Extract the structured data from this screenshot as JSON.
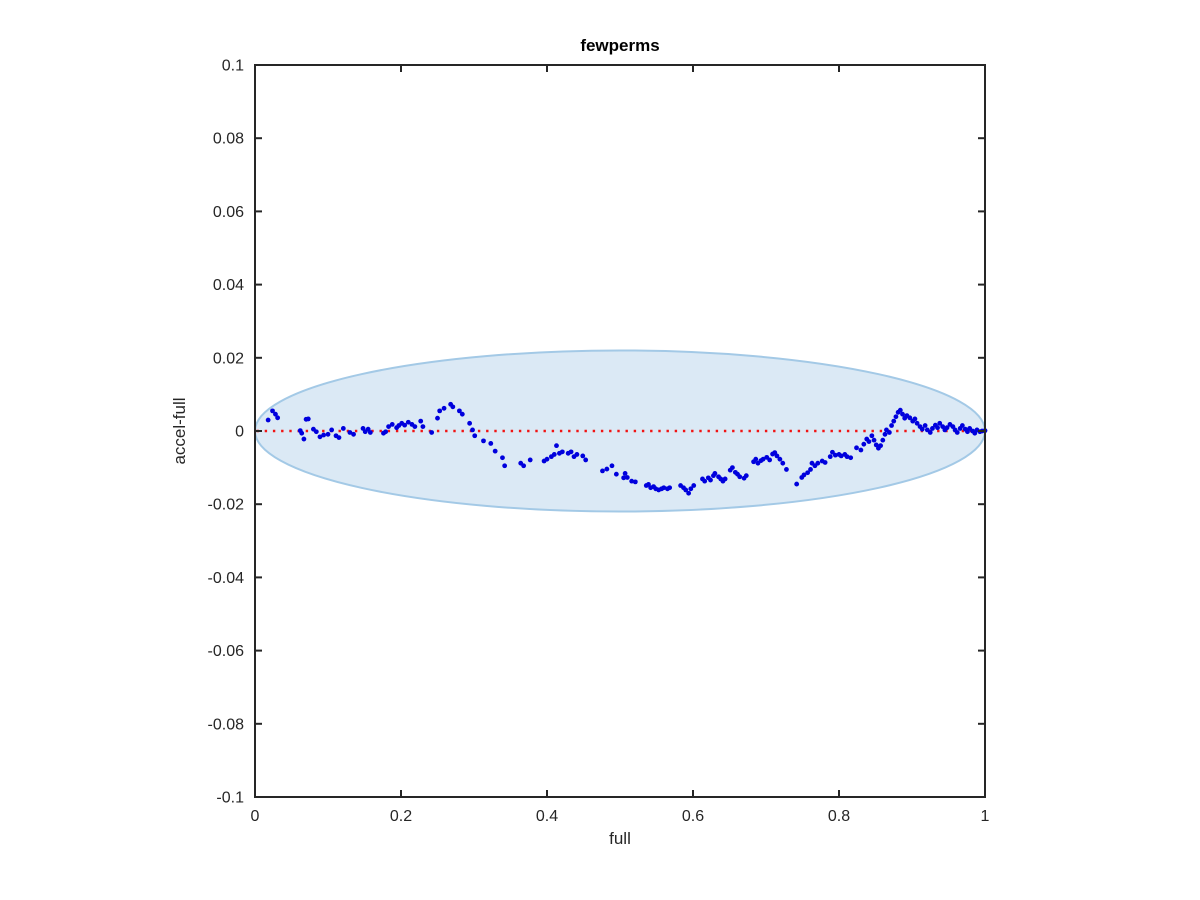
{
  "figure": {
    "background": "#ffffff"
  },
  "chart_data": {
    "type": "scatter",
    "title": "fewperms",
    "xlabel": "full",
    "ylabel": "accel-full",
    "xlim": [
      0,
      1
    ],
    "ylim": [
      -0.1,
      0.1
    ],
    "grid": false,
    "legend": "none",
    "axis_color": "#262626",
    "xticks": {
      "values": [
        0,
        0.2,
        0.4,
        0.6,
        0.8,
        1
      ],
      "labels": [
        "0",
        "0.2",
        "0.4",
        "0.6",
        "0.8",
        "1"
      ]
    },
    "yticks": {
      "values": [
        0.1,
        0.08,
        0.06,
        0.04,
        0.02,
        0,
        -0.02,
        -0.04,
        -0.06,
        -0.08,
        -0.1
      ],
      "labels": [
        "0.1",
        "0.08",
        "0.06",
        "0.04",
        "0.02",
        "0",
        "-0.02",
        "-0.04",
        "-0.06",
        "-0.08",
        "-0.1"
      ]
    },
    "reference_line": {
      "y": 0,
      "style": "dotted",
      "color": "#f01414"
    },
    "envelope_ellipse": {
      "cx": 0.5,
      "cy": 0,
      "rx": 0.5,
      "ry": 0.022,
      "fill": "#dbe9f5",
      "edge": "#a3c9e6"
    },
    "series": [
      {
        "name": "accel-full",
        "marker": "dot",
        "color": "#0000dd",
        "points": [
          [
            0.018,
            0.003
          ],
          [
            0.024,
            0.0055
          ],
          [
            0.028,
            0.0046
          ],
          [
            0.031,
            0.0036
          ],
          [
            0.062,
            0.0001
          ],
          [
            0.064,
            -0.0006
          ],
          [
            0.067,
            -0.0022
          ],
          [
            0.07,
            0.0032
          ],
          [
            0.073,
            0.0033
          ],
          [
            0.08,
            0.0005
          ],
          [
            0.084,
            -0.0002
          ],
          [
            0.089,
            -0.0016
          ],
          [
            0.094,
            -0.0011
          ],
          [
            0.1,
            -0.0009
          ],
          [
            0.105,
            0.0003
          ],
          [
            0.111,
            -0.0013
          ],
          [
            0.115,
            -0.0018
          ],
          [
            0.121,
            0.0007
          ],
          [
            0.13,
            -0.0004
          ],
          [
            0.135,
            -0.0009
          ],
          [
            0.148,
            0.0007
          ],
          [
            0.151,
            -0.0002
          ],
          [
            0.155,
            0.0005
          ],
          [
            0.158,
            -0.0004
          ],
          [
            0.176,
            -0.0006
          ],
          [
            0.179,
            -0.0002
          ],
          [
            0.183,
            0.0012
          ],
          [
            0.188,
            0.0018
          ],
          [
            0.194,
            0.0009
          ],
          [
            0.197,
            0.0015
          ],
          [
            0.201,
            0.0021
          ],
          [
            0.205,
            0.0016
          ],
          [
            0.21,
            0.0024
          ],
          [
            0.215,
            0.0018
          ],
          [
            0.219,
            0.0012
          ],
          [
            0.227,
            0.0027
          ],
          [
            0.23,
            0.0012
          ],
          [
            0.242,
            -0.0004
          ],
          [
            0.25,
            0.0035
          ],
          [
            0.253,
            0.0055
          ],
          [
            0.259,
            0.0062
          ],
          [
            0.268,
            0.0073
          ],
          [
            0.271,
            0.0066
          ],
          [
            0.28,
            0.0055
          ],
          [
            0.284,
            0.0046
          ],
          [
            0.294,
            0.0021
          ],
          [
            0.298,
            0.0003
          ],
          [
            0.301,
            -0.0013
          ],
          [
            0.313,
            -0.0027
          ],
          [
            0.323,
            -0.0034
          ],
          [
            0.329,
            -0.0055
          ],
          [
            0.339,
            -0.0073
          ],
          [
            0.342,
            -0.0095
          ],
          [
            0.364,
            -0.0088
          ],
          [
            0.368,
            -0.0095
          ],
          [
            0.377,
            -0.0079
          ],
          [
            0.396,
            -0.0082
          ],
          [
            0.4,
            -0.0077
          ],
          [
            0.406,
            -0.007
          ],
          [
            0.41,
            -0.0064
          ],
          [
            0.413,
            -0.004
          ],
          [
            0.417,
            -0.0061
          ],
          [
            0.421,
            -0.0057
          ],
          [
            0.429,
            -0.0061
          ],
          [
            0.433,
            -0.0057
          ],
          [
            0.437,
            -0.007
          ],
          [
            0.441,
            -0.0064
          ],
          [
            0.449,
            -0.0068
          ],
          [
            0.453,
            -0.0079
          ],
          [
            0.476,
            -0.0109
          ],
          [
            0.482,
            -0.0104
          ],
          [
            0.489,
            -0.0095
          ],
          [
            0.495,
            -0.0118
          ],
          [
            0.505,
            -0.0128
          ],
          [
            0.507,
            -0.0116
          ],
          [
            0.51,
            -0.0127
          ],
          [
            0.516,
            -0.0137
          ],
          [
            0.521,
            -0.0139
          ],
          [
            0.536,
            -0.0149
          ],
          [
            0.539,
            -0.0146
          ],
          [
            0.542,
            -0.0155
          ],
          [
            0.546,
            -0.0152
          ],
          [
            0.549,
            -0.0158
          ],
          [
            0.553,
            -0.0161
          ],
          [
            0.557,
            -0.0158
          ],
          [
            0.56,
            -0.0155
          ],
          [
            0.565,
            -0.0158
          ],
          [
            0.568,
            -0.0155
          ],
          [
            0.583,
            -0.0149
          ],
          [
            0.587,
            -0.0155
          ],
          [
            0.59,
            -0.0161
          ],
          [
            0.594,
            -0.017
          ],
          [
            0.597,
            -0.0158
          ],
          [
            0.601,
            -0.0149
          ],
          [
            0.613,
            -0.0131
          ],
          [
            0.616,
            -0.0137
          ],
          [
            0.621,
            -0.0128
          ],
          [
            0.624,
            -0.0134
          ],
          [
            0.628,
            -0.0122
          ],
          [
            0.63,
            -0.0116
          ],
          [
            0.635,
            -0.0125
          ],
          [
            0.638,
            -0.0131
          ],
          [
            0.641,
            -0.0137
          ],
          [
            0.644,
            -0.0131
          ],
          [
            0.651,
            -0.0107
          ],
          [
            0.654,
            -0.01
          ],
          [
            0.658,
            -0.0113
          ],
          [
            0.661,
            -0.0118
          ],
          [
            0.664,
            -0.0125
          ],
          [
            0.67,
            -0.0129
          ],
          [
            0.673,
            -0.0122
          ],
          [
            0.683,
            -0.0084
          ],
          [
            0.686,
            -0.0077
          ],
          [
            0.689,
            -0.0088
          ],
          [
            0.693,
            -0.0081
          ],
          [
            0.696,
            -0.0077
          ],
          [
            0.701,
            -0.0072
          ],
          [
            0.705,
            -0.0079
          ],
          [
            0.709,
            -0.0063
          ],
          [
            0.712,
            -0.0059
          ],
          [
            0.715,
            -0.0068
          ],
          [
            0.719,
            -0.0077
          ],
          [
            0.723,
            -0.0088
          ],
          [
            0.728,
            -0.0105
          ],
          [
            0.742,
            -0.0145
          ],
          [
            0.749,
            -0.0127
          ],
          [
            0.752,
            -0.012
          ],
          [
            0.757,
            -0.0114
          ],
          [
            0.761,
            -0.0105
          ],
          [
            0.763,
            -0.0088
          ],
          [
            0.767,
            -0.0095
          ],
          [
            0.771,
            -0.0088
          ],
          [
            0.777,
            -0.0082
          ],
          [
            0.781,
            -0.0086
          ],
          [
            0.788,
            -0.007
          ],
          [
            0.791,
            -0.0058
          ],
          [
            0.795,
            -0.0066
          ],
          [
            0.8,
            -0.0064
          ],
          [
            0.803,
            -0.0068
          ],
          [
            0.808,
            -0.0064
          ],
          [
            0.811,
            -0.007
          ],
          [
            0.816,
            -0.0073
          ],
          [
            0.824,
            -0.0046
          ],
          [
            0.83,
            -0.0052
          ],
          [
            0.834,
            -0.0036
          ],
          [
            0.838,
            -0.0022
          ],
          [
            0.841,
            -0.0029
          ],
          [
            0.845,
            -0.0013
          ],
          [
            0.848,
            -0.0025
          ],
          [
            0.851,
            -0.0038
          ],
          [
            0.854,
            -0.0047
          ],
          [
            0.857,
            -0.004
          ],
          [
            0.86,
            -0.0025
          ],
          [
            0.863,
            -0.0009
          ],
          [
            0.865,
            0.0003
          ],
          [
            0.869,
            -0.0004
          ],
          [
            0.872,
            0.0015
          ],
          [
            0.875,
            0.0027
          ],
          [
            0.878,
            0.0039
          ],
          [
            0.881,
            0.0051
          ],
          [
            0.884,
            0.0057
          ],
          [
            0.887,
            0.0046
          ],
          [
            0.89,
            0.0035
          ],
          [
            0.893,
            0.0042
          ],
          [
            0.897,
            0.0036
          ],
          [
            0.901,
            0.0027
          ],
          [
            0.904,
            0.0033
          ],
          [
            0.907,
            0.0021
          ],
          [
            0.911,
            0.0012
          ],
          [
            0.914,
            0.0005
          ],
          [
            0.918,
            0.0015
          ],
          [
            0.921,
            0.0003
          ],
          [
            0.925,
            -0.0004
          ],
          [
            0.928,
            0.0007
          ],
          [
            0.932,
            0.0016
          ],
          [
            0.935,
            0.0009
          ],
          [
            0.938,
            0.0021
          ],
          [
            0.942,
            0.0012
          ],
          [
            0.945,
            0.0003
          ],
          [
            0.948,
            0.0009
          ],
          [
            0.952,
            0.0018
          ],
          [
            0.956,
            0.0012
          ],
          [
            0.959,
            0.0003
          ],
          [
            0.962,
            -0.0004
          ],
          [
            0.966,
            0.0007
          ],
          [
            0.969,
            0.0015
          ],
          [
            0.973,
            0.0005
          ],
          [
            0.976,
            -0.0002
          ],
          [
            0.979,
            0.0007
          ],
          [
            0.983,
            0
          ],
          [
            0.986,
            -0.0006
          ],
          [
            0.989,
            0.0003
          ],
          [
            0.993,
            -0.0002
          ],
          [
            0.996,
            0
          ],
          [
            1,
            0.0001
          ]
        ]
      }
    ]
  }
}
